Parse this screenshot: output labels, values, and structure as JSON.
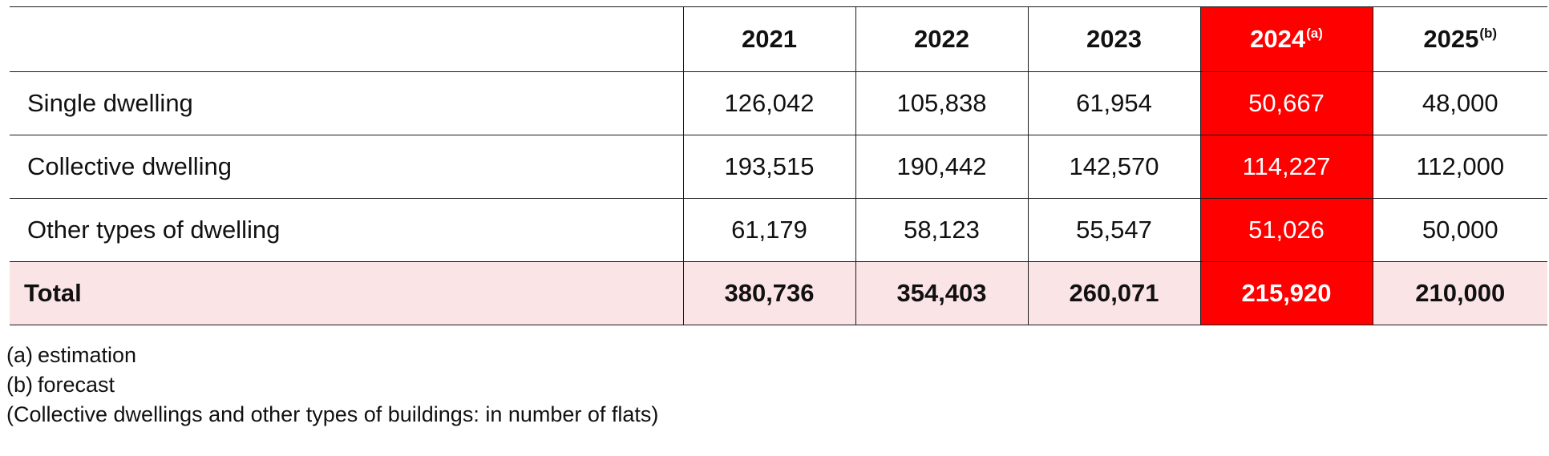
{
  "table": {
    "header": {
      "label": "",
      "years": [
        {
          "year": "2021",
          "mark": ""
        },
        {
          "year": "2022",
          "mark": ""
        },
        {
          "year": "2023",
          "mark": ""
        },
        {
          "year": "2024",
          "mark": "(a)"
        },
        {
          "year": "2025",
          "mark": "(b)"
        }
      ]
    },
    "rows": [
      {
        "label": "Single dwelling",
        "values": [
          "126,042",
          "105,838",
          "61,954",
          "50,667",
          "48,000"
        ]
      },
      {
        "label": "Collective dwelling",
        "values": [
          "193,515",
          "190,442",
          "142,570",
          "114,227",
          "112,000"
        ]
      },
      {
        "label": "Other types of dwelling",
        "values": [
          "61,179",
          "58,123",
          "55,547",
          "51,026",
          "50,000"
        ]
      }
    ],
    "total": {
      "label": "Total",
      "values": [
        "380,736",
        "354,403",
        "260,071",
        "215,920",
        "210,000"
      ]
    },
    "highlight_color": "#ff0000",
    "total_row_color": "#fbe4e6"
  },
  "notes": [
    {
      "mark": "(a)",
      "text": "estimation"
    },
    {
      "mark": "(b)",
      "text": "forecast"
    },
    {
      "mark": "",
      "text": "(Collective dwellings and other types of buildings: in number of flats)"
    }
  ]
}
